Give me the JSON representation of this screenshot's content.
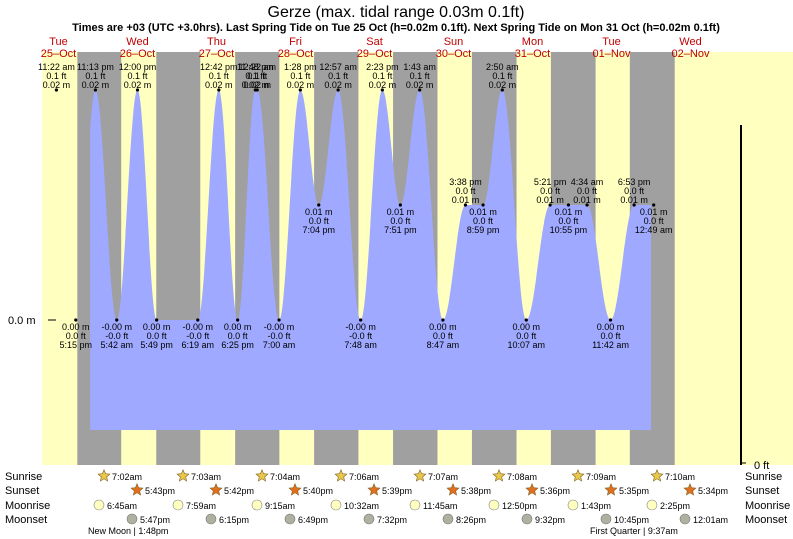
{
  "title": "Gerze (max. tidal range 0.03m 0.1ft)",
  "subtitle": "Times are +03 (UTC +3.0hrs). Last Spring Tide on Tue 25 Oct (h=0.02m 0.1ft). Next Spring Tide on Mon 31 Oct (h=0.02m 0.1ft)",
  "days": [
    {
      "dow": "Tue",
      "date": "25–Oct"
    },
    {
      "dow": "Wed",
      "date": "26–Oct"
    },
    {
      "dow": "Thu",
      "date": "27–Oct"
    },
    {
      "dow": "Fri",
      "date": "28–Oct"
    },
    {
      "dow": "Sat",
      "date": "29–Oct"
    },
    {
      "dow": "Sun",
      "date": "30–Oct"
    },
    {
      "dow": "Mon",
      "date": "31–Oct"
    },
    {
      "dow": "Tue",
      "date": "01–Nov"
    },
    {
      "dow": "Wed",
      "date": "02–Nov"
    }
  ],
  "axis": {
    "left_label": "0.0 m",
    "right_label": "0 ft"
  },
  "row_labels": [
    "Sunrise",
    "Sunset",
    "Moonrise",
    "Moonset"
  ],
  "chart_data": {
    "type": "area",
    "title": "Gerze (max. tidal range 0.03m 0.1ft)",
    "x_unit": "local time (+03)",
    "y_unit": "m",
    "high_tides": [
      {
        "time": "25 Oct 11:22 am",
        "h_m": 0.02,
        "h_ft": "0.1 ft",
        "label": "11:22 am"
      },
      {
        "time": "25 Oct 11:13 pm",
        "h_m": 0.02,
        "h_ft": "0.1 ft",
        "label": "11:13 pm"
      },
      {
        "time": "26 Oct 12:00 pm",
        "h_m": 0.02,
        "h_ft": "0.1 ft",
        "label": "12:00 pm"
      },
      {
        "time": "27 Oct 11:48 pm",
        "h_m": 0.02,
        "h_ft": "0.1 ft",
        "label": "11:48 pm"
      },
      {
        "time": "27 Oct 12:42 pm",
        "h_m": 0.02,
        "h_ft": "0.1 ft",
        "label": "12:42 pm"
      },
      {
        "time": "28 Oct 12:22 am",
        "h_m": 0.02,
        "h_ft": "0.1 ft",
        "label": "12:22 am"
      },
      {
        "time": "28 Oct 1:28 pm",
        "h_m": 0.02,
        "h_ft": "0.1 ft",
        "label": "1:28 pm"
      },
      {
        "time": "29 Oct 12:57 am",
        "h_m": 0.02,
        "h_ft": "0.1 ft",
        "label": "12:57 am"
      },
      {
        "time": "29 Oct 2:23 pm",
        "h_m": 0.02,
        "h_ft": "0.1 ft",
        "label": "2:23 pm"
      },
      {
        "time": "30 Oct 1:43 am",
        "h_m": 0.02,
        "h_ft": "0.1 ft",
        "label": "1:43 am"
      },
      {
        "time": "31 Oct 2:50 am",
        "h_m": 0.02,
        "h_ft": "0.1 ft",
        "label": "2:50 am"
      },
      {
        "time": "30 Oct 3:38 pm",
        "h_m": 0.01,
        "h_ft": "0.0 ft",
        "label": "3:38 pm"
      },
      {
        "time": "31 Oct 5:21 pm",
        "h_m": 0.01,
        "h_ft": "0.0 ft",
        "label": "5:21 pm"
      },
      {
        "time": "01 Nov 4:34 am",
        "h_m": 0.01,
        "h_ft": "0.0 ft",
        "label": "4:34 am"
      },
      {
        "time": "01 Nov 6:53 pm",
        "h_m": 0.01,
        "h_ft": "0.0 ft",
        "label": "6:53 pm"
      }
    ],
    "low_tides": [
      {
        "time": "25 Oct 5:15 pm",
        "h_m": "0.00",
        "h_ft": "0.0 ft",
        "label": "5:15 pm"
      },
      {
        "time": "26 Oct 5:42 am",
        "h_m": "-0.00",
        "h_ft": "-0.0 ft",
        "label": "5:42 am"
      },
      {
        "time": "26 Oct 5:49 pm",
        "h_m": "0.00",
        "h_ft": "0.0 ft",
        "label": "5:49 pm"
      },
      {
        "time": "27 Oct 6:19 am",
        "h_m": "-0.00",
        "h_ft": "-0.0 ft",
        "label": "6:19 am"
      },
      {
        "time": "27 Oct 6:25 pm",
        "h_m": "0.00",
        "h_ft": "0.0 ft",
        "label": "6:25 pm"
      },
      {
        "time": "28 Oct 7:00 am",
        "h_m": "-0.00",
        "h_ft": "-0.0 ft",
        "label": "7:00 am"
      },
      {
        "time": "28 Oct 7:04 pm",
        "h_m": "0.01",
        "h_ft": "0.0 ft",
        "label": "7:04 pm"
      },
      {
        "time": "29 Oct 7:48 am",
        "h_m": "-0.00",
        "h_ft": "-0.0 ft",
        "label": "7:48 am"
      },
      {
        "time": "29 Oct 7:51 pm",
        "h_m": "0.01",
        "h_ft": "0.0 ft",
        "label": "7:51 pm"
      },
      {
        "time": "30 Oct 8:47 am",
        "h_m": "0.00",
        "h_ft": "0.0 ft",
        "label": "8:47 am"
      },
      {
        "time": "30 Oct 8:59 pm",
        "h_m": "0.01",
        "h_ft": "0.0 ft",
        "label": "8:59 pm"
      },
      {
        "time": "31 Oct 10:07 am",
        "h_m": "0.00",
        "h_ft": "0.0 ft",
        "label": "10:07 am"
      },
      {
        "time": "31 Oct 10:55 pm",
        "h_m": "0.01",
        "h_ft": "0.0 ft",
        "label": "10:55 pm"
      },
      {
        "time": "01 Nov 11:42 am",
        "h_m": "0.00",
        "h_ft": "0.0 ft",
        "label": "11:42 am"
      },
      {
        "time": "02 Nov 12:49 am",
        "h_m": "0.01",
        "h_ft": "0.0 ft",
        "label": "12:49 am"
      }
    ]
  },
  "sun_moon": [
    {
      "sunrise": "7:02am",
      "sunset": "5:43pm",
      "moonrise": "6:45am",
      "moonset": "5:47pm"
    },
    {
      "sunrise": "7:03am",
      "sunset": "5:42pm",
      "moonrise": "7:59am",
      "moonset": "6:15pm"
    },
    {
      "sunrise": "7:04am",
      "sunset": "5:40pm",
      "moonrise": "9:15am",
      "moonset": "6:49pm"
    },
    {
      "sunrise": "7:06am",
      "sunset": "5:39pm",
      "moonrise": "10:32am",
      "moonset": "7:32pm"
    },
    {
      "sunrise": "7:07am",
      "sunset": "5:38pm",
      "moonrise": "11:45am",
      "moonset": "8:26pm"
    },
    {
      "sunrise": "7:08am",
      "sunset": "5:36pm",
      "moonrise": "12:50pm",
      "moonset": "9:32pm"
    },
    {
      "sunrise": "7:09am",
      "sunset": "5:35pm",
      "moonrise": "1:43pm",
      "moonset": "10:45pm"
    },
    {
      "sunrise": "7:10am",
      "sunset": "5:34pm",
      "moonrise": "2:25pm",
      "moonset": "12:01am"
    }
  ],
  "moon_phases": [
    {
      "text": "New Moon | 1:48pm"
    },
    {
      "text": "First Quarter | 9:37am"
    }
  ],
  "colors": {
    "day": "#ffffc0",
    "night": "#a0a0a0",
    "water": "#9fa9ff",
    "sun": "#e8c84a",
    "sunset": "#e07020",
    "moon": "#ffffc0",
    "moonset": "#b0b0a0"
  }
}
